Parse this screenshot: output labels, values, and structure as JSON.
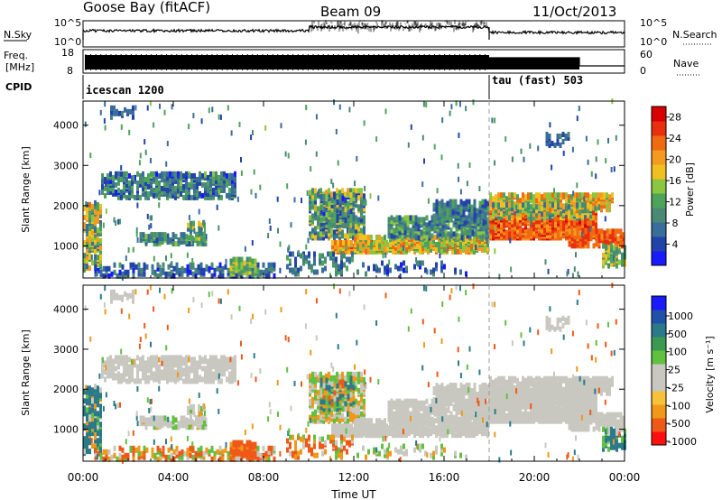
{
  "header": {
    "station": "Goose Bay (fitACF)",
    "beam": "Beam 09",
    "date": "11/Oct/2013"
  },
  "panels": {
    "nsky_label": "N.Sky",
    "nsky_ticks": [
      "10^5",
      "10^0"
    ],
    "nsearch_label": "N.Search",
    "nsearch_ticks": [
      "10^5",
      "10^0"
    ],
    "freq_label_1": "Freq.",
    "freq_label_2": "[MHz]",
    "freq_ticks": [
      "18",
      "8"
    ],
    "nave_label": "Nave",
    "nave_ticks": [
      "60",
      "0"
    ],
    "cpid_label": "CPID",
    "cpid_modes": [
      "icescan 1200",
      "tau (fast) 503"
    ]
  },
  "colors": {
    "power": [
      "#1a1aff",
      "#2244aa",
      "#3a6e9a",
      "#4a8a74",
      "#4ea35a",
      "#8cc640",
      "#f0c020",
      "#f49a20",
      "#f06a10",
      "#e83010",
      "#d80000"
    ],
    "velocity": [
      "#ff1010",
      "#f05818",
      "#f09818",
      "#f6c23a",
      "#c8c8c0",
      "#c8c8c0",
      "#60c040",
      "#3a9a50",
      "#2a7a8a",
      "#2050a8",
      "#1a1aff"
    ],
    "background": "#ffffff"
  },
  "chart_data": [
    {
      "type": "heatmap",
      "name": "power",
      "ylabel": "Slant Range [km]",
      "y_ticks": [
        1000,
        2000,
        3000,
        4000
      ],
      "ylim": [
        200,
        4600
      ],
      "x_ticks": [
        "00:00",
        "04:00",
        "08:00",
        "12:00",
        "16:00",
        "20:00",
        "00:00"
      ],
      "xlim_hours": [
        0,
        24
      ],
      "colorbar_label": "Power [dB]",
      "colorbar_ticks": [
        4,
        8,
        12,
        16,
        20,
        24,
        28
      ],
      "colorbar_range": [
        0,
        30
      ],
      "mode_change_hour": 18
    },
    {
      "type": "heatmap",
      "name": "velocity",
      "ylabel": "Slant Range [km]",
      "y_ticks": [
        1000,
        2000,
        3000,
        4000
      ],
      "ylim": [
        200,
        4600
      ],
      "x_ticks": [
        "00:00",
        "04:00",
        "08:00",
        "12:00",
        "16:00",
        "20:00",
        "00:00"
      ],
      "xlabel": "Time UT",
      "xlim_hours": [
        0,
        24
      ],
      "colorbar_label": "Velocity [m s⁻¹]",
      "colorbar_ticks": [
        "1000",
        "500",
        "100",
        "25",
        "-25",
        "-100",
        "-500",
        "-1000"
      ],
      "mode_change_hour": 18
    }
  ]
}
